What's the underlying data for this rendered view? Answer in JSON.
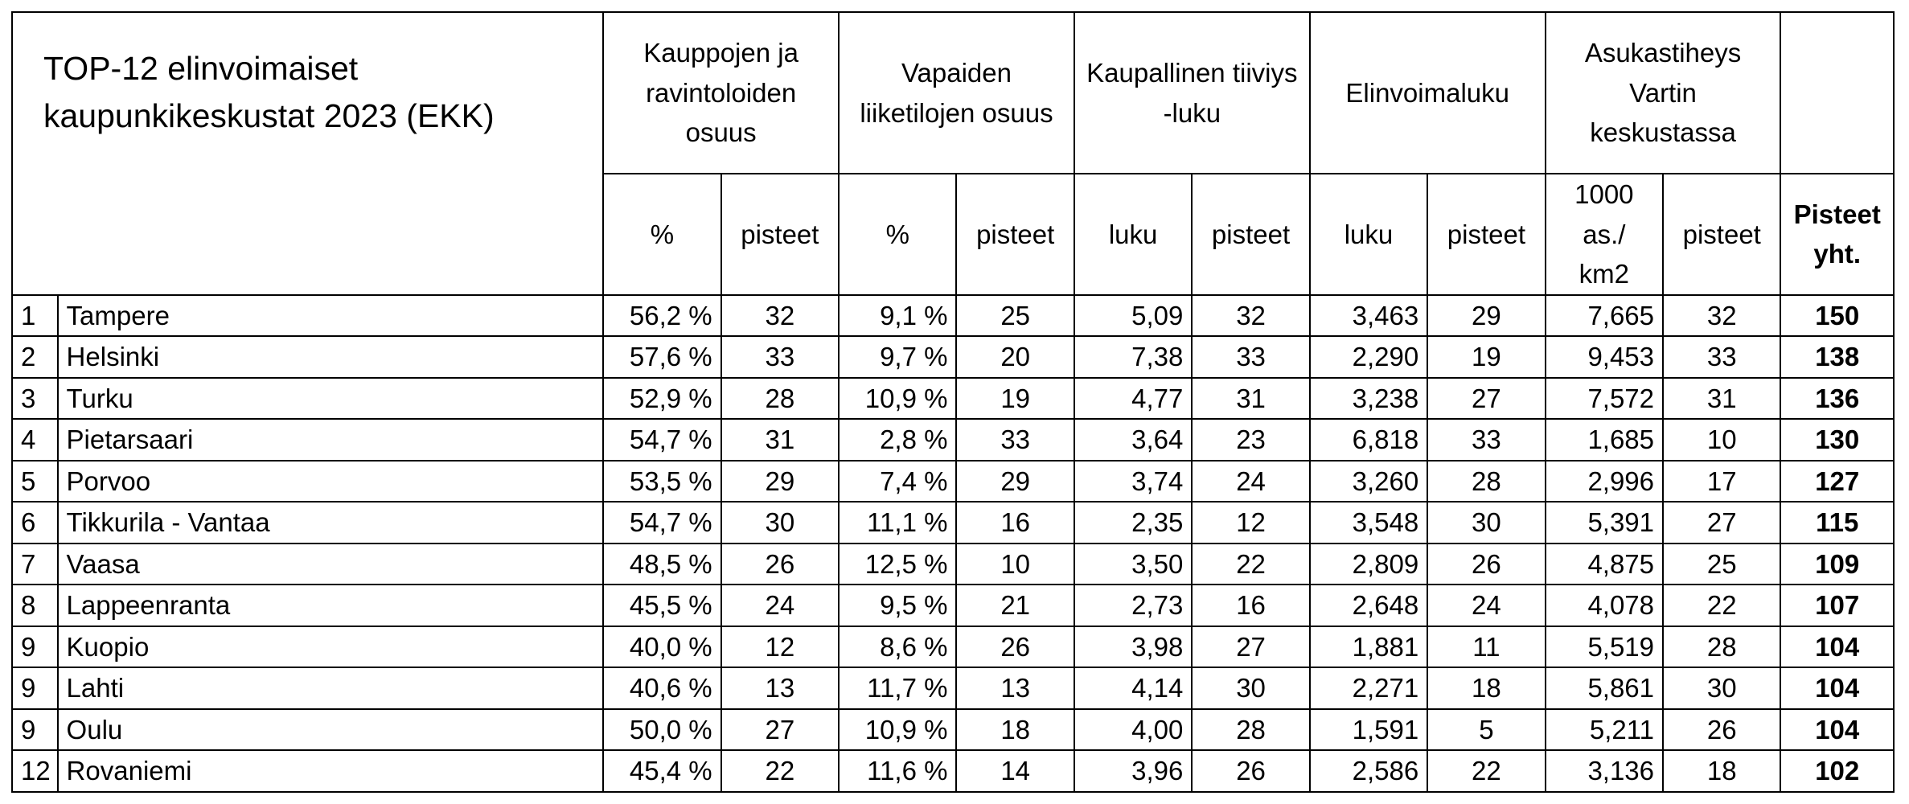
{
  "title": "TOP-12 elinvoimaiset kaupunkikeskustat 2023 (EKK)",
  "groups": [
    "Kauppojen ja ravintoloiden osuus",
    "Vapaiden liiketilojen osuus",
    "Kaupallinen tiiviys -luku",
    "Elinvoimaluku",
    "Asukastiheys Vartin keskustassa"
  ],
  "subheaders": [
    "%",
    "pisteet",
    "%",
    "pisteet",
    "luku",
    "pisteet",
    "luku",
    "pisteet",
    "1000 as./ km2",
    "pisteet"
  ],
  "total_header": "Pisteet yht.",
  "rows": [
    [
      "1",
      "Tampere",
      "56,2 %",
      "32",
      "9,1 %",
      "25",
      "5,09",
      "32",
      "3,463",
      "29",
      "7,665",
      "32",
      "150"
    ],
    [
      "2",
      "Helsinki",
      "57,6 %",
      "33",
      "9,7 %",
      "20",
      "7,38",
      "33",
      "2,290",
      "19",
      "9,453",
      "33",
      "138"
    ],
    [
      "3",
      "Turku",
      "52,9 %",
      "28",
      "10,9 %",
      "19",
      "4,77",
      "31",
      "3,238",
      "27",
      "7,572",
      "31",
      "136"
    ],
    [
      "4",
      "Pietarsaari",
      "54,7 %",
      "31",
      "2,8 %",
      "33",
      "3,64",
      "23",
      "6,818",
      "33",
      "1,685",
      "10",
      "130"
    ],
    [
      "5",
      "Porvoo",
      "53,5 %",
      "29",
      "7,4 %",
      "29",
      "3,74",
      "24",
      "3,260",
      "28",
      "2,996",
      "17",
      "127"
    ],
    [
      "6",
      "Tikkurila - Vantaa",
      "54,7 %",
      "30",
      "11,1 %",
      "16",
      "2,35",
      "12",
      "3,548",
      "30",
      "5,391",
      "27",
      "115"
    ],
    [
      "7",
      "Vaasa",
      "48,5 %",
      "26",
      "12,5 %",
      "10",
      "3,50",
      "22",
      "2,809",
      "26",
      "4,875",
      "25",
      "109"
    ],
    [
      "8",
      "Lappeenranta",
      "45,5 %",
      "24",
      "9,5 %",
      "21",
      "2,73",
      "16",
      "2,648",
      "24",
      "4,078",
      "22",
      "107"
    ],
    [
      "9",
      "Kuopio",
      "40,0 %",
      "12",
      "8,6 %",
      "26",
      "3,98",
      "27",
      "1,881",
      "11",
      "5,519",
      "28",
      "104"
    ],
    [
      "9",
      "Lahti",
      "40,6 %",
      "13",
      "11,7 %",
      "13",
      "4,14",
      "30",
      "2,271",
      "18",
      "5,861",
      "30",
      "104"
    ],
    [
      "9",
      "Oulu",
      "50,0 %",
      "27",
      "10,9 %",
      "18",
      "4,00",
      "28",
      "1,591",
      "5",
      "5,211",
      "26",
      "104"
    ],
    [
      "12",
      "Rovaniemi",
      "45,4 %",
      "22",
      "11,6 %",
      "14",
      "3,96",
      "26",
      "2,586",
      "22",
      "3,136",
      "18",
      "102"
    ]
  ]
}
